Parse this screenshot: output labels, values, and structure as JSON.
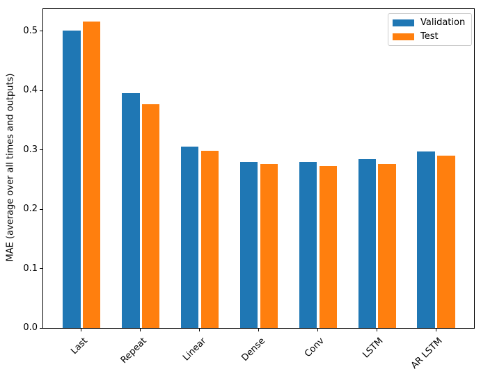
{
  "chart_data": {
    "type": "bar",
    "title": "",
    "xlabel": "",
    "ylabel": "MAE (average over all times and outputs)",
    "categories": [
      "Last",
      "Repeat",
      "Linear",
      "Dense",
      "Conv",
      "LSTM",
      "AR LSTM"
    ],
    "series": [
      {
        "name": "Validation",
        "color": "#1f77b4",
        "values": [
          0.501,
          0.396,
          0.306,
          0.28,
          0.28,
          0.285,
          0.297
        ]
      },
      {
        "name": "Test",
        "color": "#ff7f0e",
        "values": [
          0.516,
          0.377,
          0.299,
          0.276,
          0.273,
          0.276,
          0.29
        ]
      }
    ],
    "yticks": [
      0.0,
      0.1,
      0.2,
      0.3,
      0.4,
      0.5
    ],
    "ytick_labels": [
      "0.0",
      "0.1",
      "0.2",
      "0.3",
      "0.4",
      "0.5"
    ],
    "ylim": [
      0,
      0.538
    ],
    "xlim": [
      -0.652,
      6.652
    ],
    "bar_width": 0.3,
    "bar_offset": 0.17,
    "grid": false,
    "xtick_rotation": 45,
    "legend": {
      "position": "upper right",
      "entries": [
        "Validation",
        "Test"
      ]
    }
  }
}
